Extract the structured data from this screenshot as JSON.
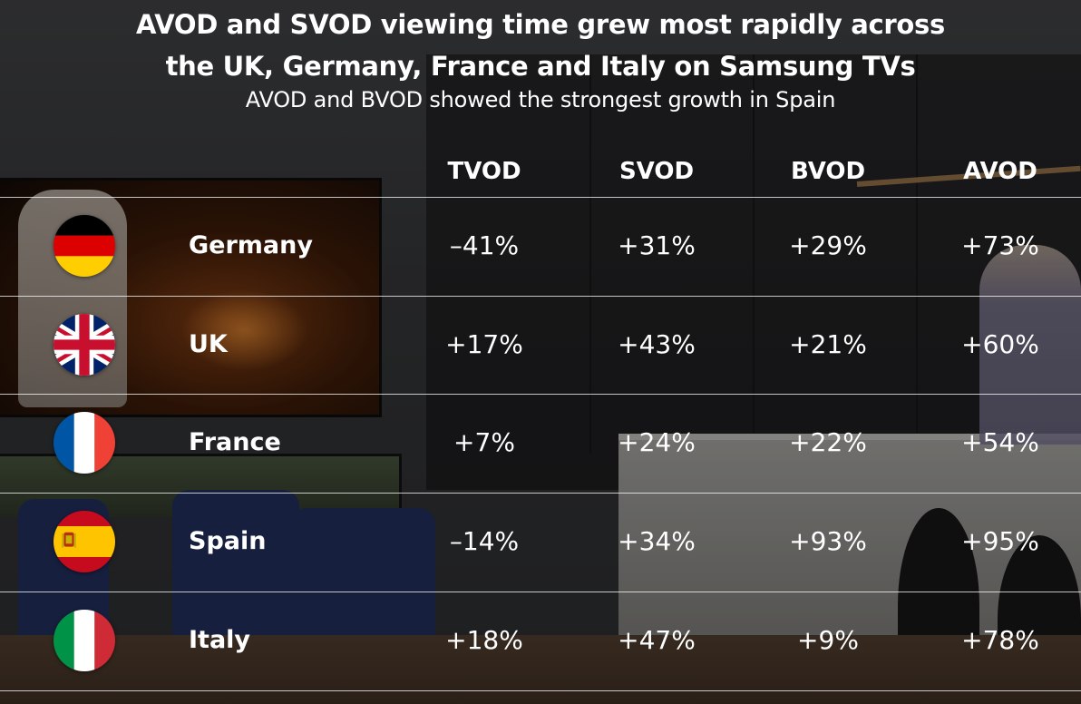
{
  "header": {
    "title_line1": "AVOD and SVOD viewing time grew most rapidly across",
    "title_line2": "the UK, Germany, France and Italy on Samsung TVs",
    "subtitle": "AVOD and BVOD showed the strongest growth in Spain"
  },
  "table": {
    "columns": [
      "TVOD",
      "SVOD",
      "BVOD",
      "AVOD"
    ],
    "rows": [
      {
        "country": "Germany",
        "flag": "germany-flag-icon",
        "values": [
          "–41%",
          "+31%",
          "+29%",
          "+73%"
        ]
      },
      {
        "country": "UK",
        "flag": "uk-flag-icon",
        "values": [
          "+17%",
          "+43%",
          "+21%",
          "+60%"
        ]
      },
      {
        "country": "France",
        "flag": "france-flag-icon",
        "values": [
          "+7%",
          "+24%",
          "+22%",
          "+54%"
        ]
      },
      {
        "country": "Spain",
        "flag": "spain-flag-icon",
        "values": [
          "–14%",
          "+34%",
          "+93%",
          "+95%"
        ]
      },
      {
        "country": "Italy",
        "flag": "italy-flag-icon",
        "values": [
          "+18%",
          "+47%",
          "+9%",
          "+78%"
        ]
      }
    ]
  },
  "colors": {
    "text": "#ffffff",
    "rule": "#ffffff",
    "germany": [
      "#000000",
      "#dd0000",
      "#ffce00"
    ],
    "uk": [
      "#012169",
      "#ffffff",
      "#c8102e"
    ],
    "france": [
      "#0055a4",
      "#ffffff",
      "#ef4135"
    ],
    "spain": [
      "#c60b1e",
      "#ffc400"
    ],
    "italy": [
      "#009246",
      "#ffffff",
      "#ce2b37"
    ]
  }
}
